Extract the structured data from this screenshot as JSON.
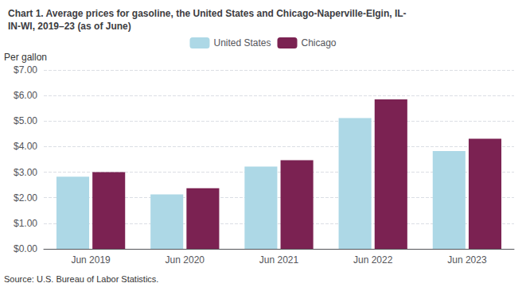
{
  "chart_data": {
    "type": "bar",
    "title": "Chart 1. Average prices for gasoline, the United States and Chicago-Naperville-Elgin, IL-\nIN-WI, 2019–23 (as of June)",
    "ylabel": "Per gallon",
    "source": "Source: U.S. Bureau of Labor Statistics.",
    "categories": [
      "Jun 2019",
      "Jun 2020",
      "Jun 2021",
      "Jun 2022",
      "Jun 2023"
    ],
    "series": [
      {
        "name": "United States",
        "color": "#add8e6",
        "values": [
          2.82,
          2.13,
          3.22,
          5.12,
          3.83
        ]
      },
      {
        "name": "Chicago",
        "color": "#7b2252",
        "values": [
          3.0,
          2.37,
          3.47,
          5.85,
          4.31
        ]
      }
    ],
    "ylim": [
      0,
      7.0
    ],
    "yticks": [
      {
        "value": 0.0,
        "label": "$0.00"
      },
      {
        "value": 1.0,
        "label": "$1.00"
      },
      {
        "value": 2.0,
        "label": "$2.00"
      },
      {
        "value": 3.0,
        "label": "$3.00"
      },
      {
        "value": 4.0,
        "label": "$4.00"
      },
      {
        "value": 5.0,
        "label": "$5.00"
      },
      {
        "value": 6.0,
        "label": "$6.00"
      },
      {
        "value": 7.0,
        "label": "$7.00"
      }
    ],
    "grid": true,
    "legend": "top"
  }
}
